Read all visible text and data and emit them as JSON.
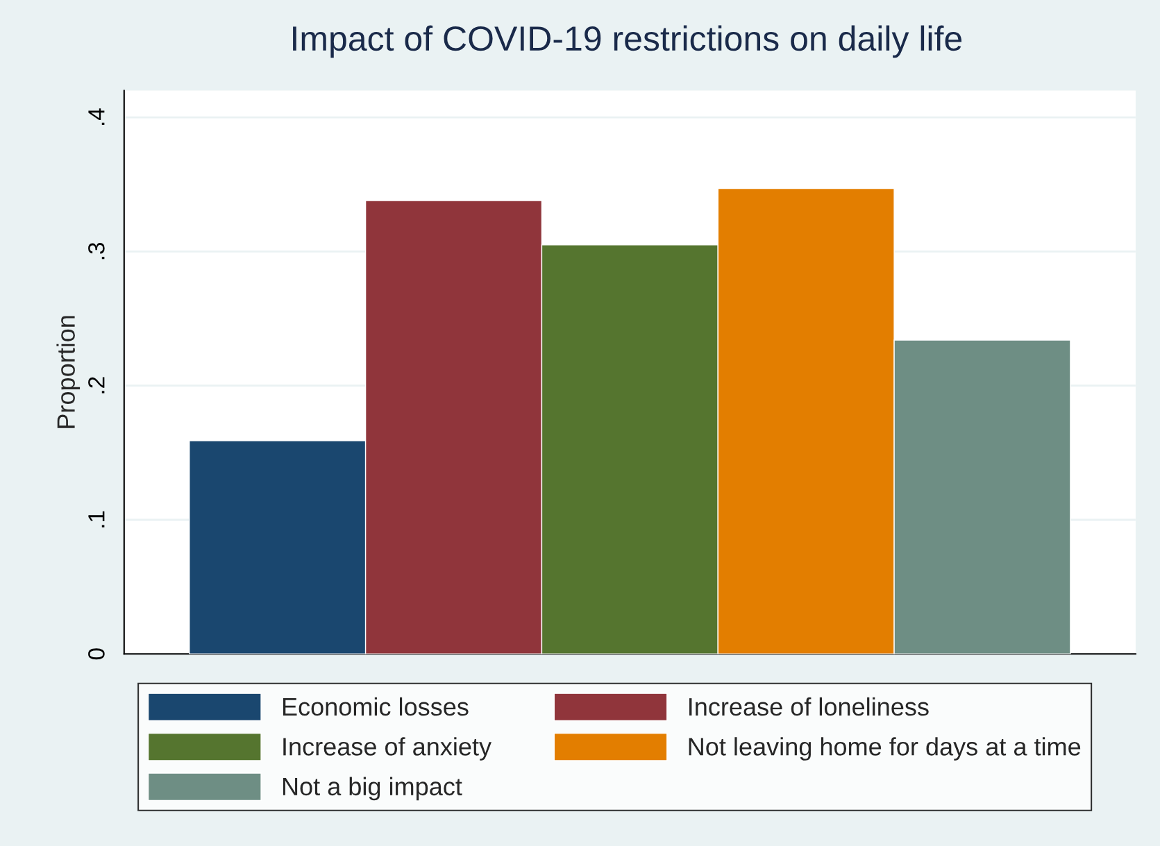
{
  "chart_data": {
    "type": "bar",
    "title": "Impact of COVID-19 restrictions on daily life",
    "ylabel": "Proportion",
    "categories": [
      null
    ],
    "series": [
      {
        "name": "Economic losses",
        "color": "#1a476f",
        "values": [
          0.159
        ]
      },
      {
        "name": "Increase of loneliness",
        "color": "#90353b",
        "values": [
          0.338
        ]
      },
      {
        "name": "Increase of anxiety",
        "color": "#55752f",
        "values": [
          0.305
        ]
      },
      {
        "name": "Not leaving home for days at a time",
        "color": "#e37e00",
        "values": [
          0.347
        ]
      },
      {
        "name": "Not a big impact",
        "color": "#6e8e84",
        "values": [
          0.234
        ]
      }
    ],
    "ylim": [
      0,
      0.42
    ],
    "yticks": [
      0,
      {
        "value": 0.1,
        "label": ".1"
      },
      {
        "value": 0.2,
        "label": ".2"
      },
      {
        "value": 0.3,
        "label": ".3"
      },
      {
        "value": 0.4,
        "label": ".4"
      }
    ],
    "grid": "y",
    "legend": "bottom"
  }
}
